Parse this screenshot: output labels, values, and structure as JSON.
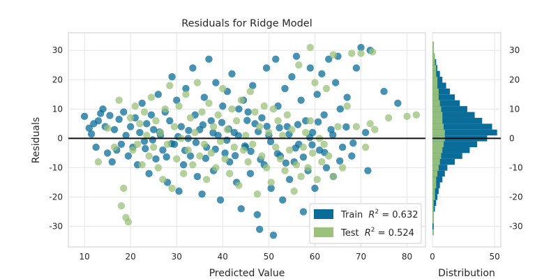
{
  "chart_data": {
    "type": "scatter",
    "title": "Residuals for Ridge Model",
    "xlabel": "Predicted Value",
    "ylabel": "Residuals",
    "xlim": [
      6.5,
      84
    ],
    "ylim": [
      -37,
      36
    ],
    "xticks": [
      10,
      20,
      30,
      40,
      50,
      60,
      70,
      80
    ],
    "yticks": [
      30,
      20,
      10,
      0,
      -10,
      -20,
      -30
    ],
    "grid": true,
    "legend_position": "bottom-right",
    "zero_line": 0,
    "series": [
      {
        "name": "Train",
        "legend_math_label": "R^2 = 0.632",
        "color": "#0a6c99",
        "points": [
          [
            10,
            7.5
          ],
          [
            11,
            3.5
          ],
          [
            11.5,
            1.5
          ],
          [
            12,
            5
          ],
          [
            12.5,
            -3
          ],
          [
            13,
            6
          ],
          [
            13.5,
            8.5
          ],
          [
            14,
            10
          ],
          [
            14.5,
            4
          ],
          [
            15,
            -5
          ],
          [
            15.5,
            7.8
          ],
          [
            16,
            -8
          ],
          [
            16.5,
            3
          ],
          [
            17,
            -4
          ],
          [
            17.5,
            6.5
          ],
          [
            18,
            -2
          ],
          [
            18.5,
            9
          ],
          [
            19,
            1
          ],
          [
            19.5,
            -6
          ],
          [
            20,
            4
          ],
          [
            20.5,
            -3
          ],
          [
            21,
            7
          ],
          [
            21.5,
            -9
          ],
          [
            22,
            2
          ],
          [
            22.5,
            12
          ],
          [
            23,
            -1
          ],
          [
            23.5,
            5
          ],
          [
            24,
            -12
          ],
          [
            24.5,
            8
          ],
          [
            25,
            3
          ],
          [
            25.5,
            -7
          ],
          [
            26,
            15
          ],
          [
            26.5,
            1
          ],
          [
            27,
            -4
          ],
          [
            27.5,
            9
          ],
          [
            28,
            -15
          ],
          [
            28.5,
            6
          ],
          [
            29,
            21
          ],
          [
            29.5,
            -2
          ],
          [
            30,
            13
          ],
          [
            30.5,
            -18
          ],
          [
            31,
            4
          ],
          [
            31.5,
            -9
          ],
          [
            32,
            17
          ],
          [
            32.5,
            0
          ],
          [
            33,
            -6
          ],
          [
            33.5,
            24
          ],
          [
            34,
            8
          ],
          [
            34.5,
            -13
          ],
          [
            35,
            3
          ],
          [
            35.5,
            -19
          ],
          [
            36,
            14
          ],
          [
            36.5,
            -3
          ],
          [
            37,
            27
          ],
          [
            37.5,
            6
          ],
          [
            38,
            -11
          ],
          [
            38.5,
            19
          ],
          [
            39,
            1
          ],
          [
            39.5,
            -21
          ],
          [
            40,
            11
          ],
          [
            40.5,
            -5
          ],
          [
            41,
            16
          ],
          [
            41.5,
            -8
          ],
          [
            42,
            22
          ],
          [
            42.5,
            2
          ],
          [
            43,
            -15
          ],
          [
            43.5,
            10
          ],
          [
            44,
            -24
          ],
          [
            44.5,
            13
          ],
          [
            45,
            -3
          ],
          [
            45.5,
            9
          ],
          [
            46,
            -12
          ],
          [
            46.5,
            18
          ],
          [
            47,
            5
          ],
          [
            47.5,
            -26
          ],
          [
            48,
            -31
          ],
          [
            48.5,
            7
          ],
          [
            49,
            -9
          ],
          [
            49.5,
            24
          ],
          [
            50,
            1
          ],
          [
            50.5,
            -17
          ],
          [
            51,
            -33
          ],
          [
            51.5,
            27
          ],
          [
            52,
            11
          ],
          [
            52.5,
            -6
          ],
          [
            53,
            -21
          ],
          [
            53.5,
            17
          ],
          [
            54,
            4
          ],
          [
            54.5,
            -14
          ],
          [
            55,
            21
          ],
          [
            55.5,
            -8
          ],
          [
            56,
            28
          ],
          [
            56.5,
            -2
          ],
          [
            57,
            13
          ],
          [
            57.5,
            -25
          ],
          [
            58,
            6
          ],
          [
            58.5,
            -11
          ],
          [
            59,
            24
          ],
          [
            59.5,
            2
          ],
          [
            60,
            -17
          ],
          [
            60.5,
            15
          ],
          [
            61,
            -4
          ],
          [
            61.5,
            22
          ],
          [
            62,
            8
          ],
          [
            62.5,
            -10
          ],
          [
            63,
            27
          ],
          [
            63.5,
            3
          ],
          [
            64,
            -13
          ],
          [
            64.5,
            19
          ],
          [
            65,
            28
          ],
          [
            65.5,
            10
          ],
          [
            66,
            -3
          ],
          [
            67,
            14
          ],
          [
            68,
            -6
          ],
          [
            69,
            24
          ],
          [
            70,
            31
          ],
          [
            71,
            2
          ],
          [
            72,
            30
          ],
          [
            75,
            16
          ],
          [
            78,
            12
          ],
          [
            71.5,
            -11
          ],
          [
            23.2,
            -3.5
          ],
          [
            24.8,
            -0.5
          ],
          [
            26.3,
            2.2
          ],
          [
            27.8,
            -6.3
          ],
          [
            28.9,
            -1.8
          ],
          [
            30.3,
            0.6
          ],
          [
            31.8,
            -4.1
          ],
          [
            32.6,
            2.7
          ],
          [
            34.2,
            -1.4
          ],
          [
            35.7,
            4.6
          ],
          [
            36.3,
            -6.8
          ],
          [
            37.9,
            1.9
          ],
          [
            38.4,
            -3.7
          ],
          [
            39.8,
            5.4
          ],
          [
            40.9,
            -0.6
          ],
          [
            41.3,
            3.2
          ],
          [
            42.7,
            -5.9
          ],
          [
            43.4,
            0.9
          ],
          [
            44.8,
            -2.6
          ],
          [
            45.3,
            6.1
          ],
          [
            46.1,
            -4.4
          ],
          [
            47.7,
            2.3
          ],
          [
            48.2,
            -7.2
          ],
          [
            49.6,
            4.1
          ],
          [
            50.4,
            -1.1
          ],
          [
            51.9,
            -5.2
          ],
          [
            52.3,
            3.6
          ],
          [
            53.7,
            -8.4
          ],
          [
            54.4,
            1.4
          ],
          [
            55.8,
            -3.3
          ],
          [
            56.3,
            4.7
          ],
          [
            57.5,
            -6.4
          ],
          [
            58.9,
            0.3
          ],
          [
            59.4,
            -2.2
          ],
          [
            60.7,
            5.6
          ],
          [
            62.1,
            -4.8
          ],
          [
            63.9,
            1.2
          ],
          [
            65.4,
            -7.7
          ],
          [
            66.8,
            3.9
          ],
          [
            68.3,
            -1.6
          ]
        ]
      },
      {
        "name": "Test",
        "legend_math_label": "R^2 = 0.524",
        "color": "#9bc27b",
        "points": [
          [
            13,
            -8
          ],
          [
            15,
            3.5
          ],
          [
            16.5,
            -3
          ],
          [
            17.5,
            13
          ],
          [
            18,
            -23
          ],
          [
            18.5,
            -17
          ],
          [
            19,
            -27
          ],
          [
            19.5,
            -28.5
          ],
          [
            20,
            7
          ],
          [
            20.5,
            -4
          ],
          [
            21,
            11
          ],
          [
            21.5,
            -2
          ],
          [
            22,
            5
          ],
          [
            22.5,
            -9
          ],
          [
            23,
            9
          ],
          [
            23.5,
            1
          ],
          [
            24,
            -6
          ],
          [
            24.5,
            14
          ],
          [
            25,
            -3
          ],
          [
            25.5,
            6
          ],
          [
            26,
            -10
          ],
          [
            26.5,
            2
          ],
          [
            27,
            -14
          ],
          [
            27.5,
            10
          ],
          [
            28,
            -2
          ],
          [
            28.5,
            18
          ],
          [
            29,
            -17
          ],
          [
            29.5,
            4
          ],
          [
            30,
            -7
          ],
          [
            30.5,
            11
          ],
          [
            31,
            0
          ],
          [
            31.5,
            -12
          ],
          [
            32,
            15
          ],
          [
            32.5,
            -4
          ],
          [
            33,
            7
          ],
          [
            33.5,
            -9
          ],
          [
            34,
            2
          ],
          [
            34.5,
            19
          ],
          [
            35,
            -6
          ],
          [
            35.5,
            9
          ],
          [
            36,
            -2
          ],
          [
            36.5,
            -14
          ],
          [
            37,
            12
          ],
          [
            37.5,
            -5
          ],
          [
            38,
            4
          ],
          [
            38.5,
            -10
          ],
          [
            39,
            8
          ],
          [
            39.5,
            -1
          ],
          [
            40,
            17
          ],
          [
            40.5,
            -7
          ],
          [
            41,
            3
          ],
          [
            41.5,
            -12
          ],
          [
            42,
            10
          ],
          [
            42.5,
            -3
          ],
          [
            43,
            6
          ],
          [
            43.5,
            -16
          ],
          [
            44,
            13
          ],
          [
            44.5,
            -4
          ],
          [
            45,
            1
          ],
          [
            45.5,
            -8
          ],
          [
            46,
            16
          ],
          [
            46.5,
            -2
          ],
          [
            47,
            9
          ],
          [
            47.5,
            -19
          ],
          [
            48,
            4
          ],
          [
            48.5,
            -6
          ],
          [
            49,
            11
          ],
          [
            49.5,
            -10
          ],
          [
            50,
            2
          ],
          [
            50.5,
            -15
          ],
          [
            51,
            10
          ],
          [
            51.5,
            -3
          ],
          [
            52,
            6
          ],
          [
            52.5,
            -7
          ],
          [
            53,
            1
          ],
          [
            53.5,
            -11
          ],
          [
            54,
            8
          ],
          [
            54.5,
            -4
          ],
          [
            55,
            3
          ],
          [
            55.5,
            -18
          ],
          [
            56,
            -9
          ],
          [
            56.5,
            25
          ],
          [
            57,
            -13
          ],
          [
            57.5,
            -3
          ],
          [
            58,
            2
          ],
          [
            58.5,
            -10
          ],
          [
            59,
            6
          ],
          [
            59.5,
            -5
          ],
          [
            60,
            19
          ],
          [
            60.5,
            -14
          ],
          [
            61,
            0
          ],
          [
            61.5,
            -8
          ],
          [
            62,
            -2
          ],
          [
            62.5,
            17
          ],
          [
            63,
            -6
          ],
          [
            64,
            -13
          ],
          [
            65,
            4
          ],
          [
            66,
            -10
          ],
          [
            67,
            11
          ],
          [
            68,
            29
          ],
          [
            69,
            4
          ],
          [
            70,
            29
          ],
          [
            71,
            -3
          ],
          [
            72,
            5
          ],
          [
            73,
            3
          ],
          [
            76,
            7
          ],
          [
            80,
            7.5
          ],
          [
            82,
            8
          ],
          [
            59,
            31
          ],
          [
            64,
            28.5
          ],
          [
            72.5,
            29.5
          ]
        ]
      }
    ],
    "histogram": {
      "xlabel": "Distribution",
      "xticks": [
        0,
        50
      ],
      "xlim": [
        0,
        55
      ],
      "bin_edges": [
        -33,
        -31,
        -29,
        -27,
        -25,
        -23,
        -21,
        -19,
        -17,
        -15,
        -13,
        -11,
        -9,
        -7,
        -5,
        -3,
        -1,
        1,
        3,
        5,
        7,
        9,
        11,
        13,
        15,
        17,
        19,
        21,
        23,
        25,
        27,
        29,
        31,
        33
      ],
      "train_counts": [
        1,
        1,
        1,
        1,
        2,
        3,
        4,
        5,
        6,
        8,
        10,
        12,
        18,
        24,
        30,
        36,
        44,
        52,
        48,
        40,
        34,
        28,
        22,
        18,
        14,
        11,
        8,
        6,
        4,
        3,
        2,
        1,
        1
      ],
      "test_counts": [
        1,
        0,
        1,
        1,
        1,
        1,
        2,
        2,
        3,
        3,
        4,
        5,
        6,
        7,
        8,
        9,
        10,
        10,
        9,
        8,
        8,
        7,
        6,
        5,
        5,
        4,
        4,
        3,
        3,
        2,
        2,
        1,
        1
      ]
    }
  }
}
